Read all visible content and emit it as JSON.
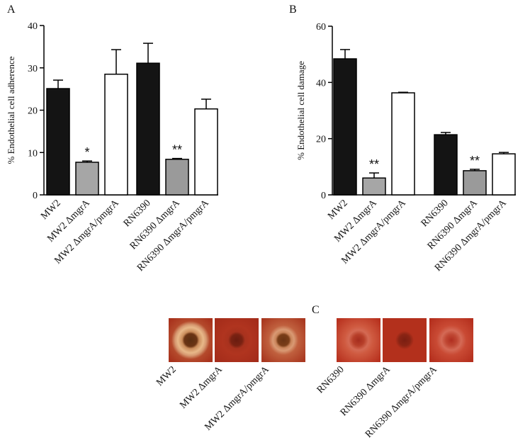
{
  "chart_data": [
    {
      "type": "bar",
      "panel_label": "A",
      "y_label": "% Endothelial cell adherence",
      "categories": [
        "MW2",
        "MW2 ΔmgrA",
        "MW2 ΔmgrA/pmgrA",
        "RN6390",
        "RN6390 ΔmgrA",
        "RN6390 ΔmgrA/pmgrA"
      ],
      "values": [
        25.1,
        7.7,
        28.5,
        31.1,
        8.4,
        20.3
      ],
      "errors": [
        2.0,
        0.3,
        5.8,
        4.7,
        0.2,
        2.3
      ],
      "annotations": [
        null,
        "*",
        null,
        null,
        "**",
        null
      ],
      "colors": [
        "#141414",
        "#a6a6a6",
        "#ffffff",
        "#141414",
        "#9a9a9a",
        "#ffffff"
      ],
      "ylim": [
        0,
        40
      ],
      "yticks": [
        0,
        10,
        20,
        30,
        40
      ]
    },
    {
      "type": "bar",
      "panel_label": "B",
      "y_label": "% Endothelial cell damage",
      "categories": [
        "MW2",
        "MW2 ΔmgrA",
        "MW2 ΔmgrA/pmgrA",
        "RN6390",
        "RN6390 ΔmgrA",
        "RN6390 ΔmgrA/pmgrA"
      ],
      "values": [
        48.4,
        6.0,
        36.3,
        21.4,
        8.6,
        14.6
      ],
      "errors": [
        3.3,
        1.8,
        0.2,
        0.8,
        0.5,
        0.5
      ],
      "annotations": [
        null,
        "**",
        null,
        null,
        "**",
        null
      ],
      "colors": [
        "#141414",
        "#a6a6a6",
        "#ffffff",
        "#141414",
        "#9a9a9a",
        "#ffffff"
      ],
      "ylim": [
        0,
        60
      ],
      "yticks": [
        0,
        20,
        40,
        60
      ]
    }
  ],
  "panel_c": {
    "panel_label": "C",
    "labels": [
      "MW2",
      "MW2 ΔmgrA",
      "MW2 ΔmgrA/pmgrA",
      "RN6390",
      "RN6390 ΔmgrA",
      "RN6390 ΔmgrA/pmgrA"
    ]
  }
}
